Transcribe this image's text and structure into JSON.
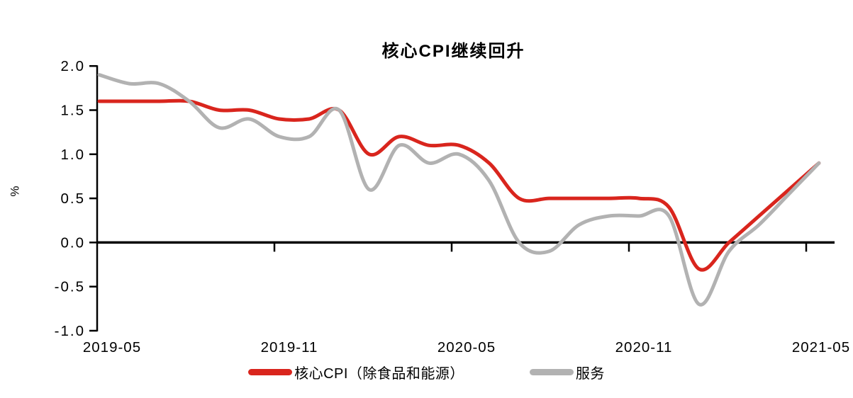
{
  "chart_data": {
    "type": "line",
    "title": "核心CPI继续回升",
    "ylabel": "%",
    "grid": false,
    "legend_position": "bottom",
    "ylim": [
      -1.0,
      2.0
    ],
    "y_tick_values": [
      2.0,
      1.5,
      1.0,
      0.5,
      0.0,
      -0.5,
      -1.0
    ],
    "y_tick_labels": [
      "2.0",
      "1.5",
      "1.0",
      "0.5",
      "0.0",
      "-0.5",
      "-1.0"
    ],
    "x": [
      "2019-05",
      "2019-06",
      "2019-07",
      "2019-08",
      "2019-09",
      "2019-10",
      "2019-11",
      "2019-12",
      "2020-01",
      "2020-02",
      "2020-03",
      "2020-04",
      "2020-05",
      "2020-06",
      "2020-07",
      "2020-08",
      "2020-09",
      "2020-10",
      "2020-11",
      "2020-12",
      "2021-01",
      "2021-02",
      "2021-03",
      "2021-04",
      "2021-05"
    ],
    "x_tick_labels": [
      "2019-05",
      "2019-11",
      "2020-05",
      "2020-11",
      "2021-05"
    ],
    "series": [
      {
        "name": "核心CPI（除食品和能源）",
        "color": "#d9251d",
        "values": [
          1.6,
          1.6,
          1.6,
          1.6,
          1.5,
          1.5,
          1.4,
          1.4,
          1.5,
          1.0,
          1.2,
          1.1,
          1.1,
          0.9,
          0.5,
          0.5,
          0.5,
          0.5,
          0.5,
          0.4,
          -0.3,
          0.0,
          0.3,
          0.6,
          0.9
        ]
      },
      {
        "name": "服务",
        "color": "#b2b2b2",
        "values": [
          1.9,
          1.8,
          1.8,
          1.6,
          1.3,
          1.4,
          1.2,
          1.2,
          1.5,
          0.6,
          1.1,
          0.9,
          1.0,
          0.7,
          0.0,
          -0.1,
          0.2,
          0.3,
          0.3,
          0.3,
          -0.7,
          -0.1,
          0.2,
          0.55,
          0.9
        ]
      }
    ],
    "axis_color": "#000000"
  }
}
